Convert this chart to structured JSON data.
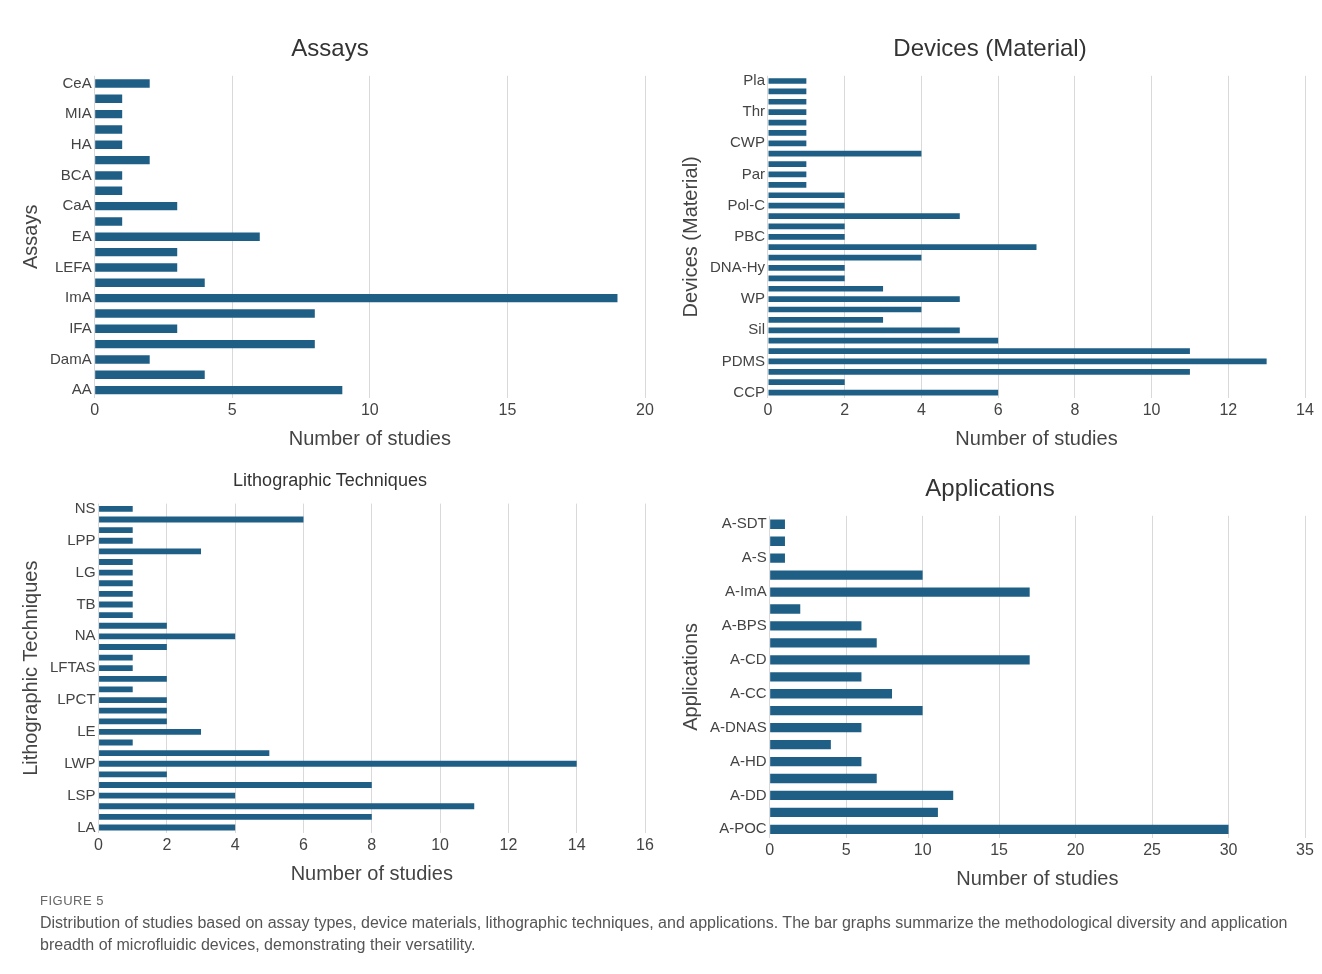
{
  "chart_data": [
    {
      "type": "bar",
      "orientation": "horizontal",
      "title": "Assays",
      "ylabel": "Assays",
      "xlabel": "Number of studies",
      "grid": "x",
      "legend": false,
      "categories": [
        "CeA",
        null,
        "MIA",
        null,
        "HA",
        null,
        "BCA",
        null,
        "CaA",
        null,
        "EA",
        null,
        "LEFA",
        null,
        "ImA",
        null,
        "IFA",
        null,
        "DamA",
        null,
        "AA"
      ],
      "series": [
        {
          "color": "#1f5f86",
          "values": [
            2,
            1,
            1,
            1,
            1,
            2,
            1,
            1,
            3,
            1,
            6,
            3,
            3,
            4,
            19,
            8,
            3,
            8,
            2,
            4,
            9
          ]
        }
      ],
      "xlim": [
        0,
        20
      ],
      "xticks": [
        0,
        5,
        10,
        15,
        20
      ]
    },
    {
      "type": "bar",
      "orientation": "horizontal",
      "title": "Devices (Material)",
      "ylabel": "Devices (Material)",
      "xlabel": "Number of studies",
      "grid": "x",
      "legend": false,
      "categories": [
        "Pla",
        null,
        null,
        "Thr",
        null,
        null,
        "CWP",
        null,
        null,
        "Par",
        null,
        null,
        "Pol-C",
        null,
        null,
        "PBC",
        null,
        null,
        "DNA-Hy",
        null,
        null,
        "WP",
        null,
        null,
        "Sil",
        null,
        null,
        "PDMS",
        null,
        null,
        "CCP"
      ],
      "series": [
        {
          "color": "#1f5f86",
          "values": [
            1,
            1,
            1,
            1,
            1,
            1,
            1,
            4,
            1,
            1,
            1,
            2,
            2,
            5,
            2,
            2,
            7,
            4,
            2,
            2,
            3,
            5,
            4,
            3,
            5,
            6,
            11,
            13,
            11,
            2,
            6
          ]
        }
      ],
      "xlim": [
        0,
        14
      ],
      "xticks": [
        0,
        2,
        4,
        6,
        8,
        10,
        12,
        14
      ]
    },
    {
      "type": "bar",
      "orientation": "horizontal",
      "title": "Lithographic Techniques",
      "ylabel": "Lithographic Techniques",
      "xlabel": "Number of studies",
      "grid": "x",
      "legend": false,
      "categories": [
        "NS",
        null,
        null,
        "LPP",
        null,
        null,
        "LG",
        null,
        null,
        "TB",
        null,
        null,
        "NA",
        null,
        null,
        "LFTAS",
        null,
        null,
        "LPCT",
        null,
        null,
        "LE",
        null,
        null,
        "LWP",
        null,
        null,
        "LSP",
        null,
        null,
        "LA"
      ],
      "series": [
        {
          "color": "#1f5f86",
          "values": [
            1,
            6,
            1,
            1,
            3,
            1,
            1,
            1,
            1,
            1,
            1,
            2,
            4,
            2,
            1,
            1,
            2,
            1,
            2,
            2,
            2,
            3,
            1,
            5,
            14,
            2,
            8,
            4,
            11,
            8,
            4
          ]
        }
      ],
      "xlim": [
        0,
        16
      ],
      "xticks": [
        0,
        2,
        4,
        6,
        8,
        10,
        12,
        14,
        16
      ]
    },
    {
      "type": "bar",
      "orientation": "horizontal",
      "title": "Applications",
      "ylabel": "Applications",
      "xlabel": "Number of studies",
      "grid": "x",
      "legend": false,
      "categories": [
        "A-SDT",
        null,
        "A-S",
        null,
        "A-ImA",
        null,
        "A-BPS",
        null,
        "A-CD",
        null,
        "A-CC",
        null,
        "A-DNAS",
        null,
        "A-HD",
        null,
        "A-DD",
        null,
        "A-POC"
      ],
      "series": [
        {
          "color": "#1f5f86",
          "values": [
            1,
            1,
            1,
            10,
            17,
            2,
            6,
            7,
            17,
            6,
            8,
            10,
            6,
            4,
            6,
            7,
            12,
            11,
            30
          ]
        }
      ],
      "xlim": [
        0,
        35
      ],
      "xticks": [
        0,
        5,
        10,
        15,
        20,
        25,
        30,
        35
      ],
      "annotations": [
        "FIGURE 5",
        "Distribution of studies based on assay types, device materials, lithographic techniques, and applications. The bar graphs summarize the methodological diversity and application breadth of microfluidic devices, demonstrating their versatility."
      ]
    }
  ]
}
